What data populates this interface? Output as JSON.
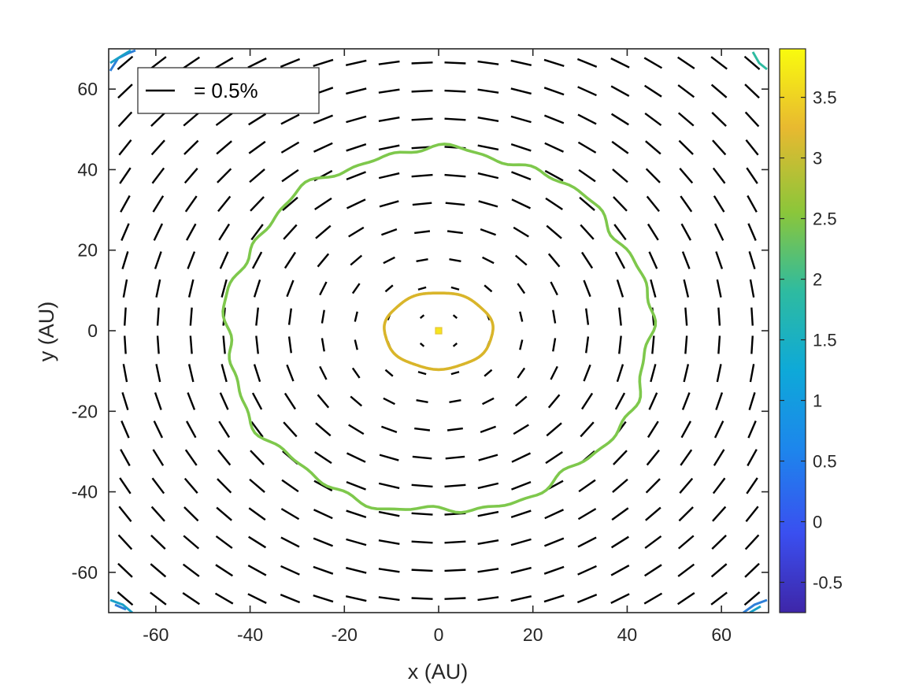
{
  "chart_data": {
    "type": "contour_with_polarization_vectors",
    "xlabel": "x (AU)",
    "ylabel": "y (AU)",
    "xlim": [
      -70,
      70
    ],
    "ylim": [
      -70,
      70
    ],
    "xticks": [
      -60,
      -40,
      -20,
      0,
      20,
      40,
      60
    ],
    "yticks": [
      -60,
      -40,
      -20,
      0,
      20,
      40,
      60
    ],
    "xtick_labels": [
      "-60",
      "-40",
      "-20",
      "0",
      "20",
      "40",
      "60"
    ],
    "ytick_labels": [
      "-60",
      "-40",
      "-20",
      "0",
      "20",
      "40",
      "60"
    ],
    "grid": false,
    "legend": {
      "position": "top-left",
      "label": "= 0.5%"
    },
    "colorbar": {
      "colormap": "parula",
      "range": [
        -0.75,
        3.9
      ],
      "ticks": [
        -0.5,
        0,
        0.5,
        1,
        1.5,
        2,
        2.5,
        3,
        3.5
      ],
      "tick_labels": [
        "-0.5",
        "0",
        "0.5",
        "1",
        "1.5",
        "2",
        "2.5",
        "3",
        "3.5"
      ]
    },
    "contours": [
      {
        "level": 2.2,
        "color": "#7ec84c",
        "shape": "circle",
        "center": [
          0,
          0
        ],
        "radius": 45
      },
      {
        "level": 3.0,
        "color": "#d9b52a",
        "shape": "ellipse",
        "center": [
          0,
          0
        ],
        "rx": 11.5,
        "ry": 9.5
      },
      {
        "level": 3.85,
        "color": "#f5e51e",
        "shape": "point",
        "center": [
          0,
          0
        ]
      }
    ],
    "vector_field": {
      "grid_spacing": 7.0,
      "grid_range": [
        -66.5,
        66.5
      ],
      "orientation": "azimuthal (perpendicular to radius)",
      "max_length": 4.5,
      "reference_vector": "0.5%"
    }
  }
}
